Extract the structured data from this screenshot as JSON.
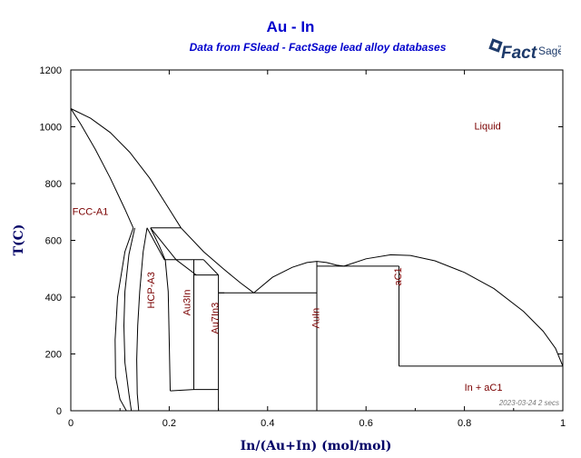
{
  "header": {
    "title": "Au - In",
    "subtitle": "Data from FSlead - FactSage lead alloy databases"
  },
  "logo": {
    "fact": "Fact",
    "sage": "Sage",
    "tm": "™",
    "color": "#1d3a6a"
  },
  "stamp": "2023-03-24  2 secs",
  "colors": {
    "title": "#0000cc",
    "axis_label": "#000066",
    "region_label": "#7a0000",
    "lines": "#000000"
  },
  "chart_data": {
    "type": "phase-diagram",
    "xlabel": "In/(Au+In) (mol/mol)",
    "ylabel": "T(C)",
    "xlim": [
      0,
      1
    ],
    "ylim": [
      0,
      1200
    ],
    "x_ticks": [
      "0",
      "0.2",
      "0.4",
      "0.6",
      "0.8",
      "1"
    ],
    "y_ticks": [
      "0",
      "200",
      "400",
      "600",
      "800",
      "1000",
      "1200"
    ],
    "grid": false,
    "region_labels": [
      {
        "name": "Liquid",
        "x": 0.82,
        "y": 990
      },
      {
        "name": "FCC-A1",
        "x": 0.003,
        "y": 690
      },
      {
        "name": "HCP-A3",
        "x": 0.17,
        "y": 360
      },
      {
        "name": "Au3In",
        "x": 0.243,
        "y": 335
      },
      {
        "name": "Au7In3",
        "x": 0.3,
        "y": 270
      },
      {
        "name": "AuIn",
        "x": 0.505,
        "y": 290
      },
      {
        "name": "aC1",
        "x": 0.672,
        "y": 440
      },
      {
        "name": "In + aC1",
        "x": 0.8,
        "y": 70
      }
    ],
    "phase_boundaries": [
      {
        "name": "liquidus-fcc",
        "x": [
          0,
          0.04,
          0.08,
          0.12,
          0.16,
          0.2,
          0.224
        ],
        "y": [
          1064,
          1030,
          980,
          910,
          820,
          710,
          644
        ]
      },
      {
        "name": "solidus-fcc",
        "x": [
          0,
          0.02,
          0.05,
          0.08,
          0.11,
          0.127
        ],
        "y": [
          1064,
          1010,
          920,
          820,
          710,
          644
        ]
      },
      {
        "name": "liquidus-to-eutectic",
        "x": [
          0.224,
          0.27,
          0.31,
          0.345,
          0.372
        ],
        "y": [
          644,
          560,
          500,
          450,
          415
        ]
      },
      {
        "name": "hcp-solvus-left",
        "x": [
          0.127,
          0.11,
          0.095,
          0.09,
          0.091,
          0.1,
          0.113
        ],
        "y": [
          644,
          560,
          400,
          250,
          120,
          40,
          0
        ]
      },
      {
        "name": "fcc-solvus",
        "x": [
          0.13,
          0.118,
          0.11,
          0.108,
          0.11,
          0.118,
          0.123
        ],
        "y": [
          644,
          550,
          420,
          300,
          170,
          60,
          0
        ]
      },
      {
        "name": "hcp-left-boundary",
        "x": [
          0.155,
          0.147,
          0.14,
          0.136,
          0.134,
          0.135,
          0.138
        ],
        "y": [
          644,
          560,
          420,
          300,
          180,
          60,
          0
        ]
      },
      {
        "name": "hcp-right-boundary",
        "x": [
          0.162,
          0.18,
          0.192,
          0.198,
          0.2,
          0.202
        ],
        "y": [
          644,
          580,
          530,
          420,
          250,
          70
        ]
      },
      {
        "name": "hcp-peritectic-top",
        "x": [
          0.162,
          0.224
        ],
        "y": [
          644,
          644
        ]
      },
      {
        "name": "hcp-liquid-edge",
        "x": [
          0.155,
          0.19
        ],
        "y": [
          644,
          532
        ]
      },
      {
        "name": "hcp-liquid-edge-2",
        "x": [
          0.162,
          0.214
        ],
        "y": [
          644,
          532
        ]
      },
      {
        "name": "au3in-top",
        "x": [
          0.19,
          0.27
        ],
        "y": [
          532,
          532
        ]
      },
      {
        "name": "au3in-upper",
        "x": [
          0.214,
          0.255
        ],
        "y": [
          532,
          478
        ]
      },
      {
        "name": "au3in-left",
        "x": [
          0.25,
          0.25
        ],
        "y": [
          532,
          75
        ]
      },
      {
        "name": "au3in-right",
        "x": [
          0.25,
          0.25
        ],
        "y": [
          478,
          75
        ]
      },
      {
        "name": "au3in-top-liquid",
        "x": [
          0.27,
          0.3
        ],
        "y": [
          532,
          478
        ]
      },
      {
        "name": "au7in3-top",
        "x": [
          0.25,
          0.3
        ],
        "y": [
          478,
          478
        ]
      },
      {
        "name": "au7in3-left-line",
        "x": [
          0.25,
          0.3
        ],
        "y": [
          75,
          75
        ]
      },
      {
        "name": "hcp-bottom-left",
        "x": [
          0.202,
          0.25
        ],
        "y": [
          70,
          75
        ]
      },
      {
        "name": "au7in3-left",
        "x": [
          0.3,
          0.3
        ],
        "y": [
          478,
          0
        ]
      },
      {
        "name": "au7in3-right-top",
        "x": [
          0.3,
          0.312
        ],
        "y": [
          415,
          415
        ]
      },
      {
        "name": "eutectic-line",
        "x": [
          0.3,
          0.5
        ],
        "y": [
          415,
          415
        ]
      },
      {
        "name": "auin-liquidus",
        "x": [
          0.372,
          0.41,
          0.45,
          0.48,
          0.5
        ],
        "y": [
          415,
          470,
          505,
          522,
          526
        ]
      },
      {
        "name": "auin-right-liquidus",
        "x": [
          0.5,
          0.52,
          0.54,
          0.555
        ],
        "y": [
          526,
          522,
          513,
          509
        ]
      },
      {
        "name": "auin-left",
        "x": [
          0.5,
          0.5
        ],
        "y": [
          526,
          0
        ]
      },
      {
        "name": "auin-ac1-line",
        "x": [
          0.5,
          0.667
        ],
        "y": [
          509,
          509
        ]
      },
      {
        "name": "ac1-liquidus",
        "x": [
          0.555,
          0.6,
          0.65,
          0.69,
          0.74,
          0.8,
          0.86,
          0.92,
          0.96,
          0.985,
          1
        ],
        "y": [
          509,
          535,
          549,
          547,
          528,
          487,
          430,
          350,
          280,
          220,
          157
        ]
      },
      {
        "name": "ac1-left",
        "x": [
          0.667,
          0.667
        ],
        "y": [
          509,
          157
        ]
      },
      {
        "name": "eutectic-in",
        "x": [
          0.667,
          1
        ],
        "y": [
          157,
          157
        ]
      }
    ]
  }
}
